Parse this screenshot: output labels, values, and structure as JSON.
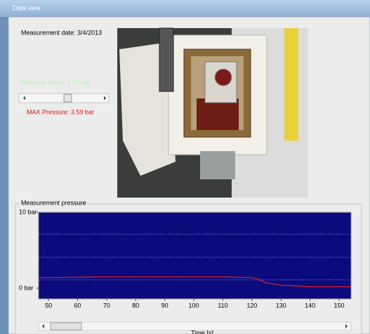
{
  "window": {
    "title": "Data view"
  },
  "info": {
    "measurement_date": "Measurement date: 3/4/2013",
    "pressure_value": "Pressure Value: 1.27 bar",
    "max_pressure": "MAX Pressure: 3.59 bar"
  },
  "group": {
    "title": "Measurement pressure"
  },
  "chart_data": {
    "type": "line",
    "x": [
      47,
      50,
      60,
      70,
      80,
      90,
      100,
      110,
      115,
      120,
      122,
      125,
      130,
      135,
      140,
      145,
      150,
      154
    ],
    "series": [
      {
        "name": "Pressure",
        "color": "#e02020",
        "values": [
          1.4,
          1.4,
          1.45,
          1.5,
          1.5,
          1.5,
          1.5,
          1.5,
          1.45,
          1.4,
          1.2,
          0.7,
          0.4,
          0.3,
          0.2,
          0.2,
          0.2,
          0.2
        ]
      }
    ],
    "xlim": [
      46.6,
      154.1
    ],
    "xticks": [
      50,
      60,
      70,
      80,
      90,
      100,
      110,
      120,
      130,
      140,
      150
    ],
    "ylim": [
      -1.4,
      10
    ],
    "yticks": [
      {
        "value": 0,
        "label": "0 bar"
      },
      {
        "value": 10,
        "label": "10 bar"
      }
    ],
    "xlabel": "Time [s]",
    "background": "#0b0b7d"
  }
}
